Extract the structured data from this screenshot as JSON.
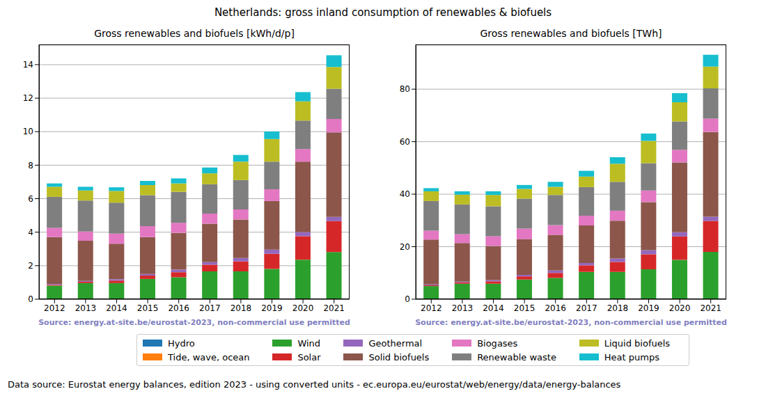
{
  "title": "Netherlands: gross inland consumption of renewables & biofuels",
  "footnote": "Data source: Eurostat energy balances, edition 2023 - using converted units - ec.europa.eu/eurostat/web/energy/data/energy-balances",
  "chart_data": [
    {
      "type": "bar",
      "title": "Gross renewables and biofuels [kWh/d/p]",
      "annotation": "Source: energy.at-site.be/eurostat-2023, non-commercial use permitted",
      "stacked": true,
      "grid": true,
      "legend": "bottom",
      "categories": [
        "2012",
        "2013",
        "2014",
        "2015",
        "2016",
        "2017",
        "2018",
        "2019",
        "2020",
        "2021"
      ],
      "ylim": [
        0,
        15.2
      ],
      "yticks": [
        0,
        2,
        4,
        6,
        8,
        10,
        12,
        14
      ],
      "series": [
        {
          "name": "Hydro",
          "color": "#1f77b4",
          "values": [
            0.01,
            0.01,
            0.01,
            0.01,
            0.01,
            0.01,
            0.01,
            0.01,
            0.01,
            0.01
          ]
        },
        {
          "name": "Tide, wave, ocean",
          "color": "#ff7f0e",
          "values": [
            0,
            0,
            0,
            0,
            0,
            0,
            0,
            0,
            0,
            0
          ]
        },
        {
          "name": "Wind",
          "color": "#2ca02c",
          "values": [
            0.8,
            0.95,
            0.95,
            1.2,
            1.3,
            1.65,
            1.65,
            1.8,
            2.35,
            2.8
          ]
        },
        {
          "name": "Solar",
          "color": "#d62728",
          "values": [
            0.05,
            0.08,
            0.15,
            0.2,
            0.3,
            0.4,
            0.6,
            0.9,
            1.4,
            1.85
          ]
        },
        {
          "name": "Geothermal",
          "color": "#9467bd",
          "values": [
            0.05,
            0.05,
            0.08,
            0.1,
            0.15,
            0.15,
            0.2,
            0.25,
            0.25,
            0.25
          ]
        },
        {
          "name": "Solid biofuels",
          "color": "#8c564b",
          "values": [
            2.8,
            2.4,
            2.12,
            2.2,
            2.2,
            2.3,
            2.3,
            2.9,
            4.2,
            5.05
          ]
        },
        {
          "name": "Biogases",
          "color": "#e377c2",
          "values": [
            0.55,
            0.55,
            0.6,
            0.65,
            0.6,
            0.6,
            0.6,
            0.7,
            0.75,
            0.8
          ]
        },
        {
          "name": "Renewable waste",
          "color": "#7f7f7f",
          "values": [
            1.85,
            1.85,
            1.85,
            1.85,
            1.85,
            1.75,
            1.75,
            1.65,
            1.7,
            1.8
          ]
        },
        {
          "name": "Liquid biofuels",
          "color": "#bcbd22",
          "values": [
            0.6,
            0.6,
            0.7,
            0.6,
            0.5,
            0.65,
            1.1,
            1.35,
            1.15,
            1.3
          ]
        },
        {
          "name": "Heat pumps",
          "color": "#17becf",
          "values": [
            0.2,
            0.22,
            0.22,
            0.25,
            0.3,
            0.35,
            0.4,
            0.45,
            0.55,
            0.7
          ]
        }
      ]
    },
    {
      "type": "bar",
      "title": "Gross renewables and biofuels [TWh]",
      "annotation": "Source: energy.at-site.be/eurostat-2023, non-commercial use permitted",
      "stacked": true,
      "grid": true,
      "legend": "bottom",
      "categories": [
        "2012",
        "2013",
        "2014",
        "2015",
        "2016",
        "2017",
        "2018",
        "2019",
        "2020",
        "2021"
      ],
      "ylim": [
        0,
        97
      ],
      "yticks": [
        0,
        20,
        40,
        60,
        80
      ],
      "series": [
        {
          "name": "Hydro",
          "color": "#1f77b4",
          "values": [
            0.1,
            0.1,
            0.1,
            0.1,
            0.1,
            0.1,
            0.1,
            0.1,
            0.1,
            0.1
          ]
        },
        {
          "name": "Tide, wave, ocean",
          "color": "#ff7f0e",
          "values": [
            0,
            0,
            0,
            0,
            0,
            0,
            0,
            0,
            0,
            0
          ]
        },
        {
          "name": "Wind",
          "color": "#2ca02c",
          "values": [
            4.9,
            5.8,
            5.8,
            7.4,
            8.0,
            10.3,
            10.3,
            11.3,
            14.9,
            17.9
          ]
        },
        {
          "name": "Solar",
          "color": "#d62728",
          "values": [
            0.3,
            0.5,
            0.9,
            1.2,
            1.9,
            2.5,
            3.8,
            5.7,
            8.9,
            11.8
          ]
        },
        {
          "name": "Geothermal",
          "color": "#9467bd",
          "values": [
            0.3,
            0.3,
            0.5,
            0.6,
            0.9,
            0.9,
            1.3,
            1.6,
            1.6,
            1.6
          ]
        },
        {
          "name": "Solid biofuels",
          "color": "#8c564b",
          "values": [
            17.1,
            14.7,
            13.0,
            13.6,
            13.6,
            14.3,
            14.4,
            18.3,
            26.6,
            32.3
          ]
        },
        {
          "name": "Biogases",
          "color": "#e377c2",
          "values": [
            3.4,
            3.4,
            3.7,
            4.0,
            3.7,
            3.7,
            3.8,
            4.4,
            4.8,
            5.1
          ]
        },
        {
          "name": "Renewable waste",
          "color": "#7f7f7f",
          "values": [
            11.3,
            11.3,
            11.4,
            11.4,
            11.5,
            10.9,
            11.0,
            10.4,
            10.8,
            11.5
          ]
        },
        {
          "name": "Liquid biofuels",
          "color": "#bcbd22",
          "values": [
            3.7,
            3.7,
            4.3,
            3.7,
            3.1,
            4.0,
            6.9,
            8.5,
            7.3,
            8.3
          ]
        },
        {
          "name": "Heat pumps",
          "color": "#17becf",
          "values": [
            1.2,
            1.3,
            1.4,
            1.5,
            1.9,
            2.2,
            2.5,
            2.8,
            3.5,
            4.5
          ]
        }
      ]
    }
  ]
}
